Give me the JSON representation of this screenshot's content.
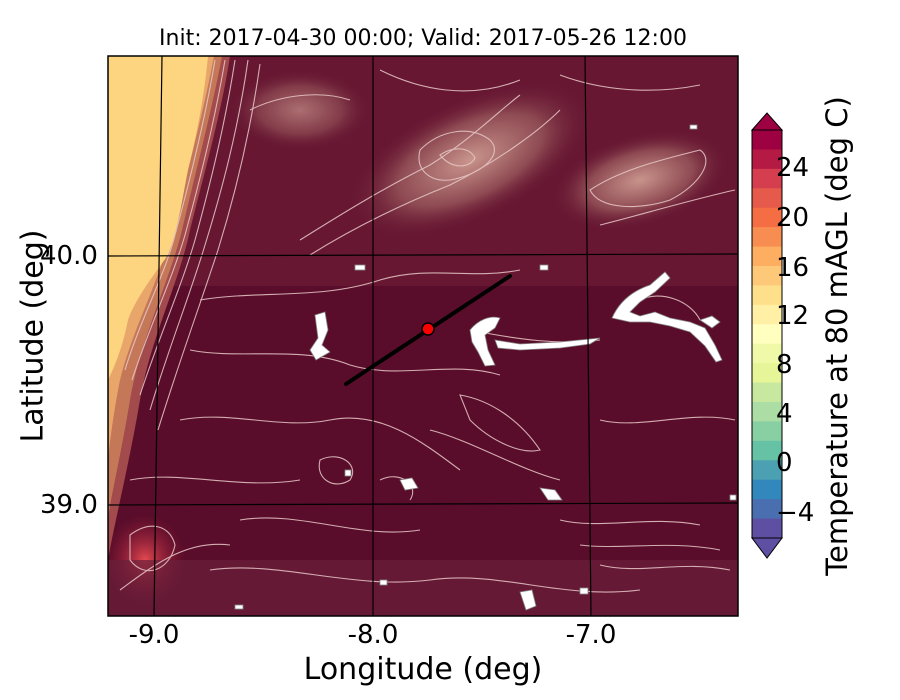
{
  "title": "Init: 2017-04-30 00:00; Valid: 2017-05-26 12:00",
  "axes": {
    "xlabel": "Longitude (deg)",
    "ylabel": "Latitude (deg)",
    "xticks": [
      "-9.0",
      "-8.0",
      "-7.0"
    ],
    "yticks": [
      "40.0",
      "39.0"
    ]
  },
  "colorbar": {
    "label": "Temperature at 80 mAGL (deg C)",
    "ticks": [
      "24",
      "20",
      "16",
      "12",
      "8",
      "4",
      "0",
      "−4"
    ],
    "colormap": "Spectral_r",
    "extend": "both"
  },
  "map": {
    "marker_color": "#ff0000",
    "transect_color": "#000000",
    "dominant_fill": "#5a0d2a",
    "ocean_fill": "#fdd580"
  }
}
